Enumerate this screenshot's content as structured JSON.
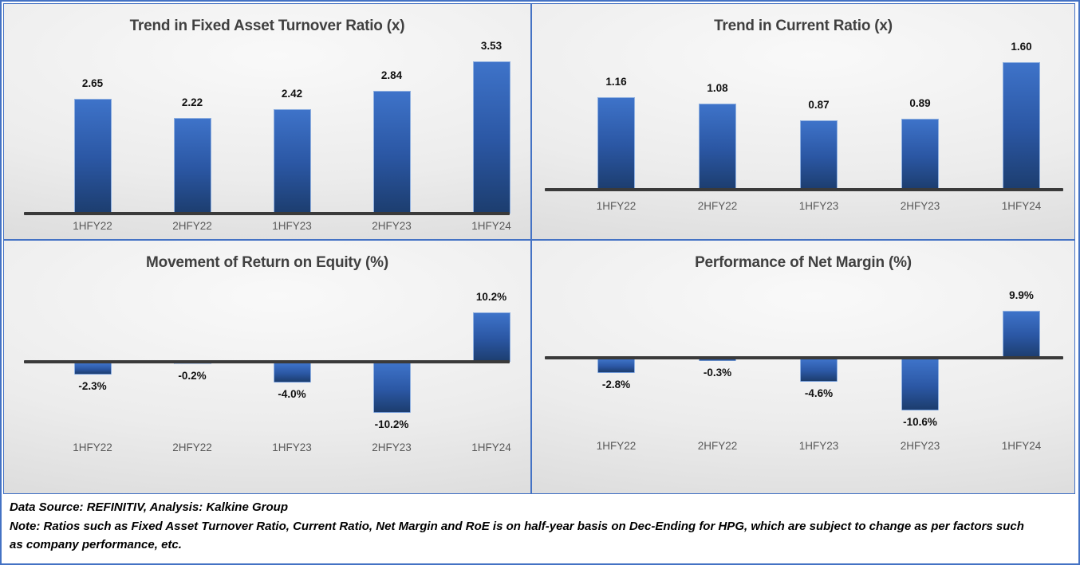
{
  "colors": {
    "accent_border": "#4472C4",
    "bar_gradient_top": "#3E73C9",
    "bar_gradient_mid": "#2B57A4",
    "bar_gradient_bottom": "#1C3D6E",
    "axis_line": "#3A3A3A",
    "title_text": "#404040",
    "category_text": "#595959"
  },
  "footer": {
    "source": "Data Source: REFINITIV, Analysis: Kalkine Group",
    "note": "Note: Ratios such as Fixed Asset Turnover Ratio, Current Ratio, Net Margin and RoE is on half-year basis on Dec-Ending for HPG, which are subject to change as per factors such as company performance, etc."
  },
  "chart_data": [
    {
      "type": "bar",
      "title": "Trend in Fixed Asset Turnover Ratio (x)",
      "categories": [
        "1HFY22",
        "2HFY22",
        "1HFY23",
        "2HFY23",
        "1HFY24"
      ],
      "values": [
        2.65,
        2.22,
        2.42,
        2.84,
        3.53
      ],
      "value_labels": [
        "2.65",
        "2.22",
        "2.42",
        "2.84",
        "3.53"
      ],
      "xlabel": "",
      "ylabel": "",
      "ylim": [
        0,
        3.65
      ],
      "grid": false,
      "legend": false
    },
    {
      "type": "bar",
      "title": "Trend in Current Ratio (x)",
      "categories": [
        "1HFY22",
        "2HFY22",
        "1HFY23",
        "2HFY23",
        "1HFY24"
      ],
      "values": [
        1.16,
        1.08,
        0.87,
        0.89,
        1.6
      ],
      "value_labels": [
        "1.16",
        "1.08",
        "0.87",
        "0.89",
        "1.60"
      ],
      "xlabel": "",
      "ylabel": "",
      "ylim": [
        0,
        1.73
      ],
      "grid": false,
      "legend": false
    },
    {
      "type": "bar",
      "title": "Movement of Return on Equity (%)",
      "categories": [
        "1HFY22",
        "2HFY22",
        "1HFY23",
        "2HFY23",
        "1HFY24"
      ],
      "values": [
        -2.3,
        -0.2,
        -4.0,
        -10.2,
        10.2
      ],
      "value_labels": [
        "-2.3%",
        "-0.2%",
        "-4.0%",
        "-10.2%",
        "10.2%"
      ],
      "xlabel": "",
      "ylabel": "",
      "ylim": [
        -20,
        15
      ],
      "grid": false,
      "legend": false
    },
    {
      "type": "bar",
      "title": "Performance of Net Margin (%)",
      "categories": [
        "1HFY22",
        "2HFY22",
        "1HFY23",
        "2HFY23",
        "1HFY24"
      ],
      "values": [
        -2.8,
        -0.3,
        -4.6,
        -10.6,
        9.9
      ],
      "value_labels": [
        "-2.8%",
        "-0.3%",
        "-4.6%",
        "-10.6%",
        "9.9%"
      ],
      "xlabel": "",
      "ylabel": "",
      "ylim": [
        -20,
        15
      ],
      "grid": false,
      "legend": false
    }
  ]
}
